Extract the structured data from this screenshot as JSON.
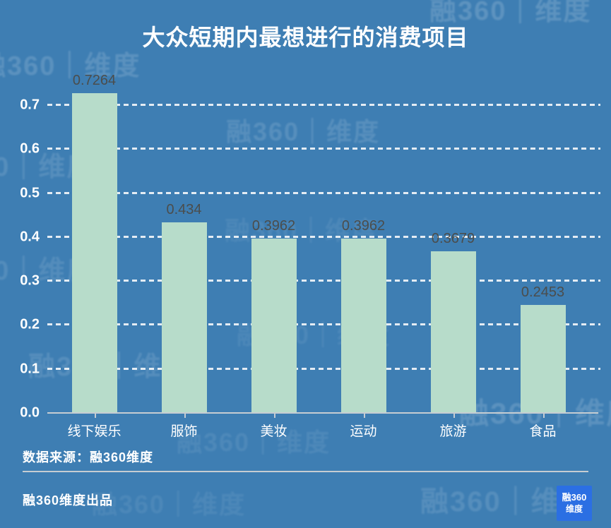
{
  "title": "大众短期内最想进行的消费项目",
  "watermark": {
    "text": "融360｜维度"
  },
  "chart_data": {
    "type": "bar",
    "title": "大众短期内最想进行的消费项目",
    "categories": [
      "线下娱乐",
      "服饰",
      "美妆",
      "运动",
      "旅游",
      "食品"
    ],
    "values": [
      0.7264,
      0.434,
      0.3962,
      0.3962,
      0.3679,
      0.2453
    ],
    "value_labels": [
      "0.7264",
      "0.434",
      "0.3962",
      "0.3962",
      "0.3679",
      "0.2453"
    ],
    "xlabel": "",
    "ylabel": "",
    "ylim": [
      0,
      0.7
    ],
    "yticks": [
      "0.0",
      "0.1",
      "0.2",
      "0.3",
      "0.4",
      "0.5",
      "0.6",
      "0.7"
    ],
    "grid": "horizontal-dashed",
    "legend": "none",
    "colors": {
      "background": "#3e7eb3",
      "bar": "#b7dcca",
      "value_label": "#4b4d4c",
      "axis_text": "#ffffff"
    }
  },
  "footer": {
    "source": "数据来源：融360维度",
    "produced_by": "融360维度出品",
    "logo": {
      "line1": "融360",
      "line2": "维度",
      "color": "#2b6fe3"
    }
  }
}
